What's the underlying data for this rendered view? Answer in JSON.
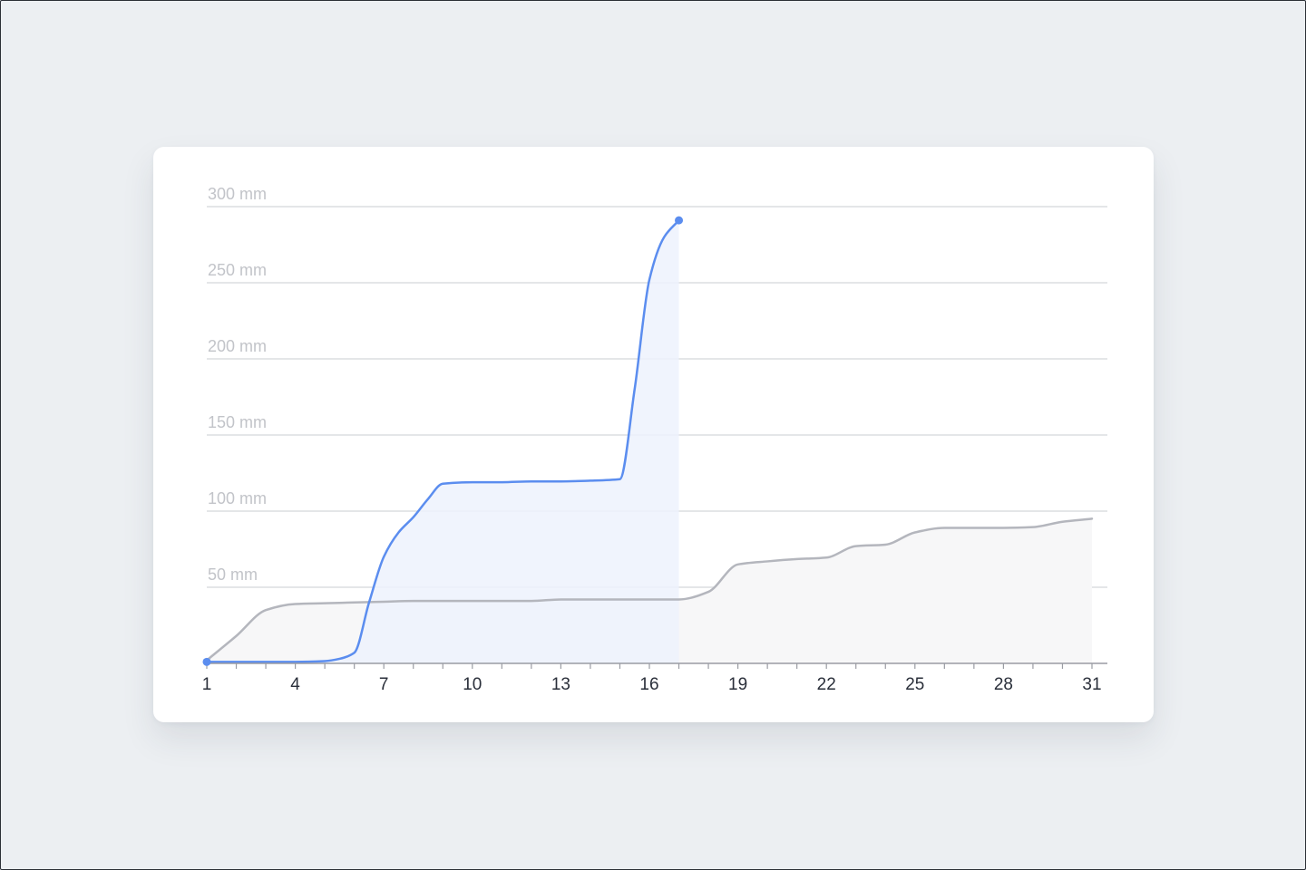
{
  "chart_data": {
    "type": "area",
    "title": "",
    "xlabel": "",
    "ylabel": "",
    "xlim": [
      1,
      31
    ],
    "ylim": [
      0,
      300
    ],
    "grid": true,
    "legend": "none",
    "x_ticks": [
      "1",
      "4",
      "7",
      "10",
      "13",
      "16",
      "19",
      "22",
      "25",
      "28",
      "31"
    ],
    "y_ticks": [
      "50 mm",
      "100 mm",
      "150 mm",
      "200 mm",
      "250 mm",
      "300 mm"
    ],
    "colors": {
      "current": "#5b8def",
      "current_fill": "#edf2fd",
      "average": "#b4b6bd",
      "average_fill": "#f7f7f8",
      "grid": "#dcdde0",
      "axis": "#9a9ca3"
    },
    "series": [
      {
        "values": [
          [
            1,
            1
          ],
          [
            2,
            1
          ],
          [
            3,
            1
          ],
          [
            4,
            1
          ],
          [
            5,
            1.5
          ],
          [
            5.5,
            3
          ],
          [
            6,
            7
          ],
          [
            6.5,
            40
          ],
          [
            7,
            70
          ],
          [
            7.5,
            86
          ],
          [
            8,
            96
          ],
          [
            8.5,
            108
          ],
          [
            9,
            118
          ],
          [
            10,
            119
          ],
          [
            11,
            119
          ],
          [
            12,
            119.5
          ],
          [
            13,
            119.5
          ],
          [
            14,
            120
          ],
          [
            15,
            121
          ],
          [
            15.5,
            180
          ],
          [
            16,
            252
          ],
          [
            16.5,
            280
          ],
          [
            17,
            291
          ]
        ]
      },
      {
        "values": [
          [
            1,
            2
          ],
          [
            2,
            18
          ],
          [
            3,
            35
          ],
          [
            4,
            39
          ],
          [
            5,
            39.5
          ],
          [
            6,
            40
          ],
          [
            7,
            40.5
          ],
          [
            8,
            41
          ],
          [
            9,
            41
          ],
          [
            10,
            41
          ],
          [
            11,
            41
          ],
          [
            12,
            41
          ],
          [
            13,
            42
          ],
          [
            14,
            42
          ],
          [
            15,
            42
          ],
          [
            16,
            42
          ],
          [
            17,
            42
          ],
          [
            18,
            47
          ],
          [
            19,
            65
          ],
          [
            20,
            67
          ],
          [
            21,
            68.5
          ],
          [
            22,
            69.5
          ],
          [
            23,
            77
          ],
          [
            24,
            78
          ],
          [
            25,
            86
          ],
          [
            26,
            89
          ],
          [
            27,
            89
          ],
          [
            28,
            89
          ],
          [
            29,
            89.5
          ],
          [
            30,
            93
          ],
          [
            31,
            95
          ]
        ]
      }
    ]
  }
}
